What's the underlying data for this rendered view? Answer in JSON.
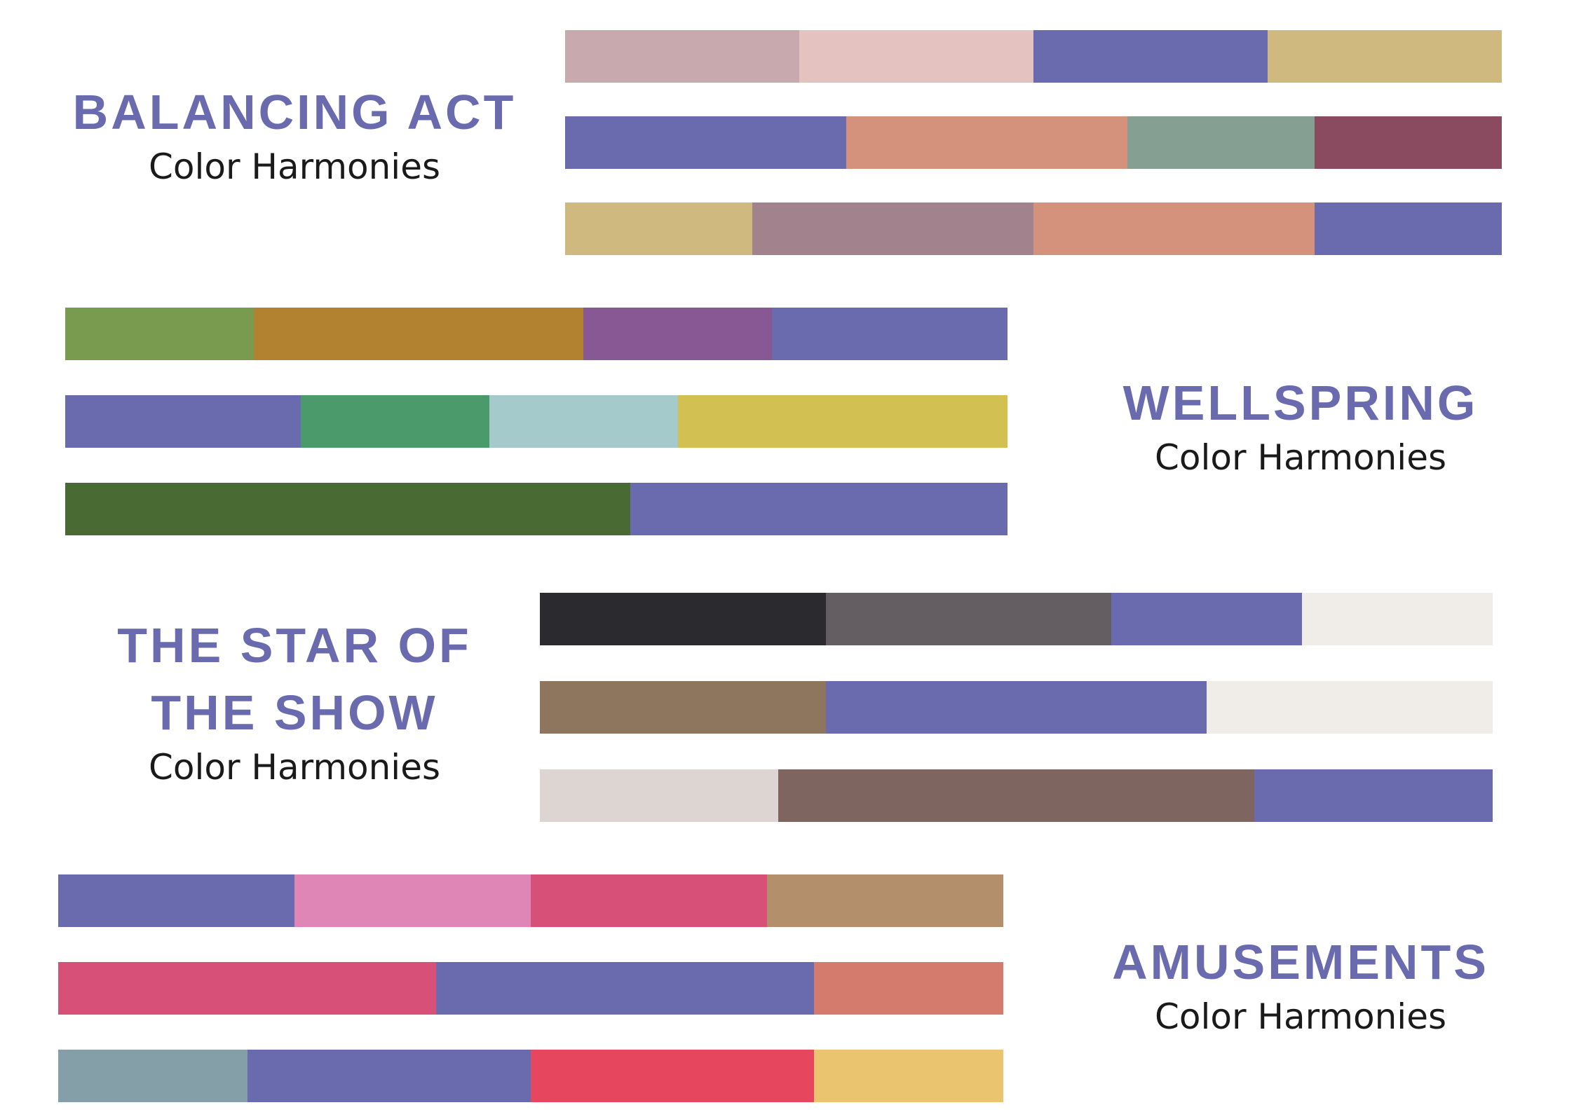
{
  "accent": "#6a6aae",
  "subtitle_color": "#1a1a1a",
  "sections": [
    {
      "id": "balancing-act",
      "title": "BALANCING ACT",
      "subtitle": "Color Harmonies",
      "bars": [
        {
          "segments": [
            {
              "color": "#c8aaae",
              "share": 0.25
            },
            {
              "color": "#e4c2c0",
              "share": 0.25
            },
            {
              "color": "#6a6aae",
              "share": 0.25
            },
            {
              "color": "#cfb97f",
              "share": 0.25
            }
          ]
        },
        {
          "segments": [
            {
              "color": "#6a6aae",
              "share": 0.3
            },
            {
              "color": "#d4917c",
              "share": 0.3
            },
            {
              "color": "#869f93",
              "share": 0.2
            },
            {
              "color": "#8a4a5f",
              "share": 0.2
            }
          ]
        },
        {
          "segments": [
            {
              "color": "#cfb97f",
              "share": 0.2
            },
            {
              "color": "#a1828d",
              "share": 0.3
            },
            {
              "color": "#d4917c",
              "share": 0.3
            },
            {
              "color": "#6a6aae",
              "share": 0.2
            }
          ]
        }
      ]
    },
    {
      "id": "wellspring",
      "title": "WELLSPRING",
      "subtitle": "Color Harmonies",
      "bars": [
        {
          "segments": [
            {
              "color": "#799b50",
              "share": 0.2
            },
            {
              "color": "#b28231",
              "share": 0.35
            },
            {
              "color": "#875894",
              "share": 0.2
            },
            {
              "color": "#6a6aae",
              "share": 0.25
            }
          ]
        },
        {
          "segments": [
            {
              "color": "#6a6aae",
              "share": 0.25
            },
            {
              "color": "#4a9a6b",
              "share": 0.2
            },
            {
              "color": "#a4cacb",
              "share": 0.2
            },
            {
              "color": "#d2c053",
              "share": 0.35
            }
          ]
        },
        {
          "segments": [
            {
              "color": "#4a6a33",
              "share": 0.6
            },
            {
              "color": "#6a6aae",
              "share": 0.4
            }
          ]
        }
      ]
    },
    {
      "id": "star-of-the-show",
      "title": "THE STAR OF THE SHOW",
      "subtitle": "Color Harmonies",
      "bars": [
        {
          "segments": [
            {
              "color": "#2b2a2f",
              "share": 0.3
            },
            {
              "color": "#645d61",
              "share": 0.3
            },
            {
              "color": "#6a6aae",
              "share": 0.2
            },
            {
              "color": "#f0ede8",
              "share": 0.2
            }
          ]
        },
        {
          "segments": [
            {
              "color": "#8e765e",
              "share": 0.3
            },
            {
              "color": "#6a6aae",
              "share": 0.4
            },
            {
              "color": "#f0ede8",
              "share": 0.3
            }
          ]
        },
        {
          "segments": [
            {
              "color": "#dcd5d2",
              "share": 0.25
            },
            {
              "color": "#7f6560",
              "share": 0.5
            },
            {
              "color": "#6a6aae",
              "share": 0.25
            }
          ]
        }
      ]
    },
    {
      "id": "amusements",
      "title": "AMUSEMENTS",
      "subtitle": "Color Harmonies",
      "bars": [
        {
          "segments": [
            {
              "color": "#6a6aae",
              "share": 0.25
            },
            {
              "color": "#e086b6",
              "share": 0.25
            },
            {
              "color": "#d65078",
              "share": 0.25
            },
            {
              "color": "#b38f6b",
              "share": 0.25
            }
          ]
        },
        {
          "segments": [
            {
              "color": "#d65078",
              "share": 0.4
            },
            {
              "color": "#6a6aae",
              "share": 0.4
            },
            {
              "color": "#d57b6d",
              "share": 0.2
            }
          ]
        },
        {
          "segments": [
            {
              "color": "#859fa9",
              "share": 0.2
            },
            {
              "color": "#6a6aae",
              "share": 0.3
            },
            {
              "color": "#e6465e",
              "share": 0.3
            },
            {
              "color": "#ebc46f",
              "share": 0.2
            }
          ]
        }
      ]
    }
  ]
}
